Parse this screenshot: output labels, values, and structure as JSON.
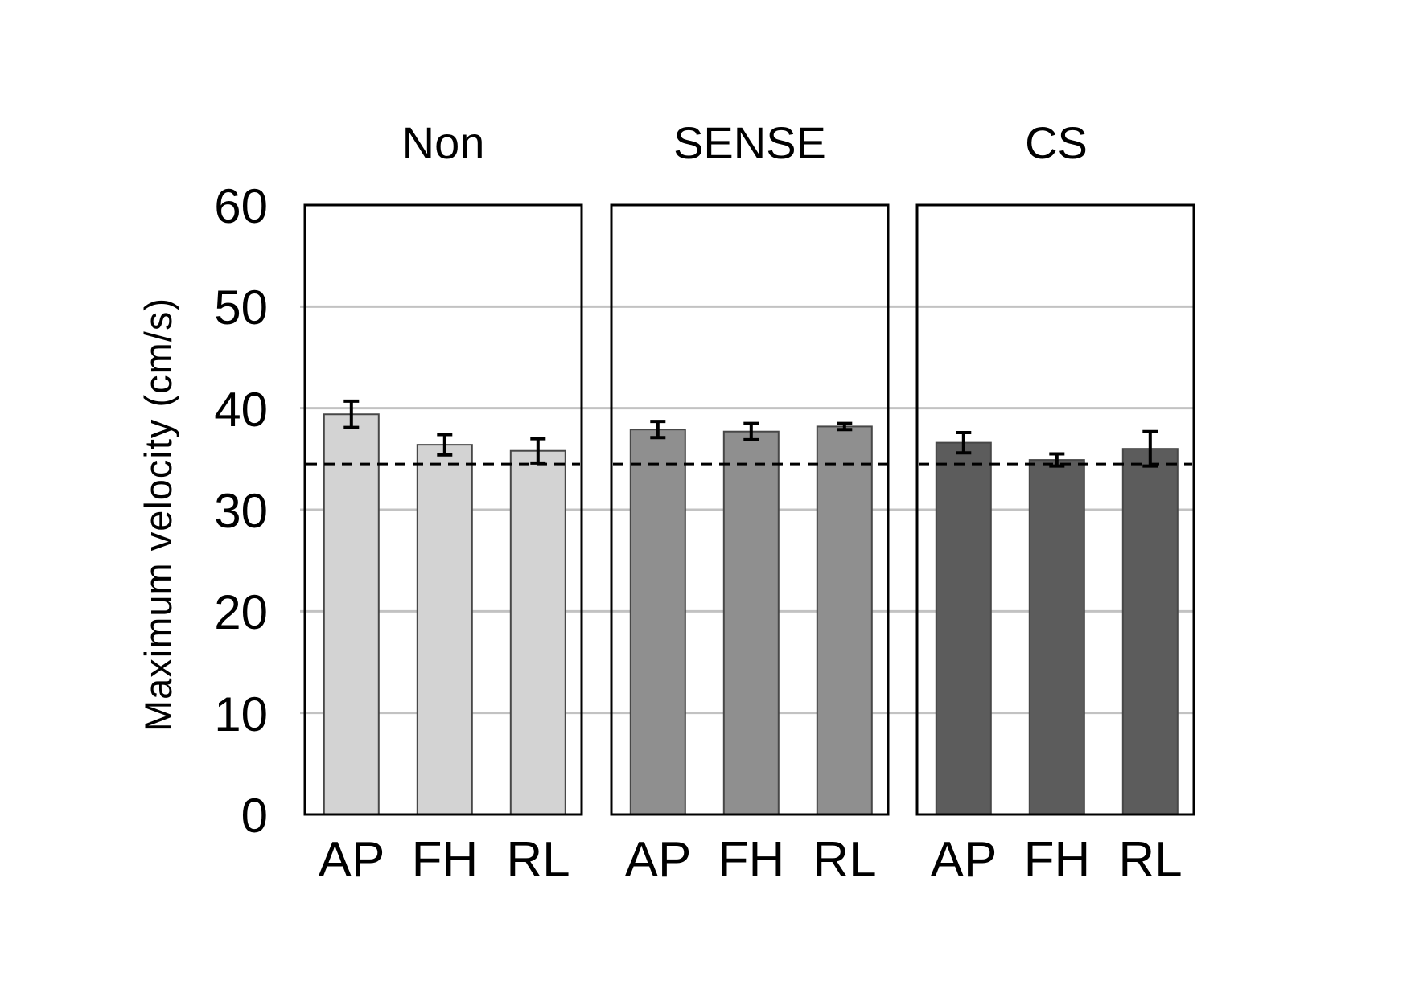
{
  "figure": {
    "background": "#ffffff"
  },
  "chart_data": {
    "type": "bar",
    "title": "",
    "ylabel": "Maximum velocity  (cm/s)",
    "xlabel": "",
    "ylim": [
      0,
      60
    ],
    "yticks": [
      0,
      10,
      20,
      30,
      40,
      50,
      60
    ],
    "ytick_labels": [
      "0",
      "10",
      "20",
      "30",
      "40",
      "50",
      "60"
    ],
    "grid": true,
    "gridlines_at": [
      10,
      20,
      30,
      40,
      50
    ],
    "legend": null,
    "categories": [
      "AP",
      "FH",
      "RL"
    ],
    "reference_line": 34.5,
    "reference_line_style": "dashed",
    "panels": [
      {
        "title": "Non",
        "bar_color": "#d3d3d3",
        "series": [
          {
            "category": "AP",
            "value": 39.4,
            "error": 1.3
          },
          {
            "category": "FH",
            "value": 36.4,
            "error": 1.0
          },
          {
            "category": "RL",
            "value": 35.8,
            "error": 1.2
          }
        ]
      },
      {
        "title": "SENSE",
        "bar_color": "#8f8f8f",
        "series": [
          {
            "category": "AP",
            "value": 37.9,
            "error": 0.8
          },
          {
            "category": "FH",
            "value": 37.7,
            "error": 0.8
          },
          {
            "category": "RL",
            "value": 38.2,
            "error": 0.3
          }
        ]
      },
      {
        "title": "CS",
        "bar_color": "#5c5c5c",
        "series": [
          {
            "category": "AP",
            "value": 36.6,
            "error": 1.0
          },
          {
            "category": "FH",
            "value": 34.9,
            "error": 0.6
          },
          {
            "category": "RL",
            "value": 36.0,
            "error": 1.7
          }
        ]
      }
    ],
    "style": {
      "bar_outline_color": "#474747",
      "grid_color": "#c2c2c2",
      "panel_border_color": "#000000",
      "error_bar_color": "#000000",
      "reference_line_color": "#000000",
      "text_color": "#000000"
    }
  }
}
